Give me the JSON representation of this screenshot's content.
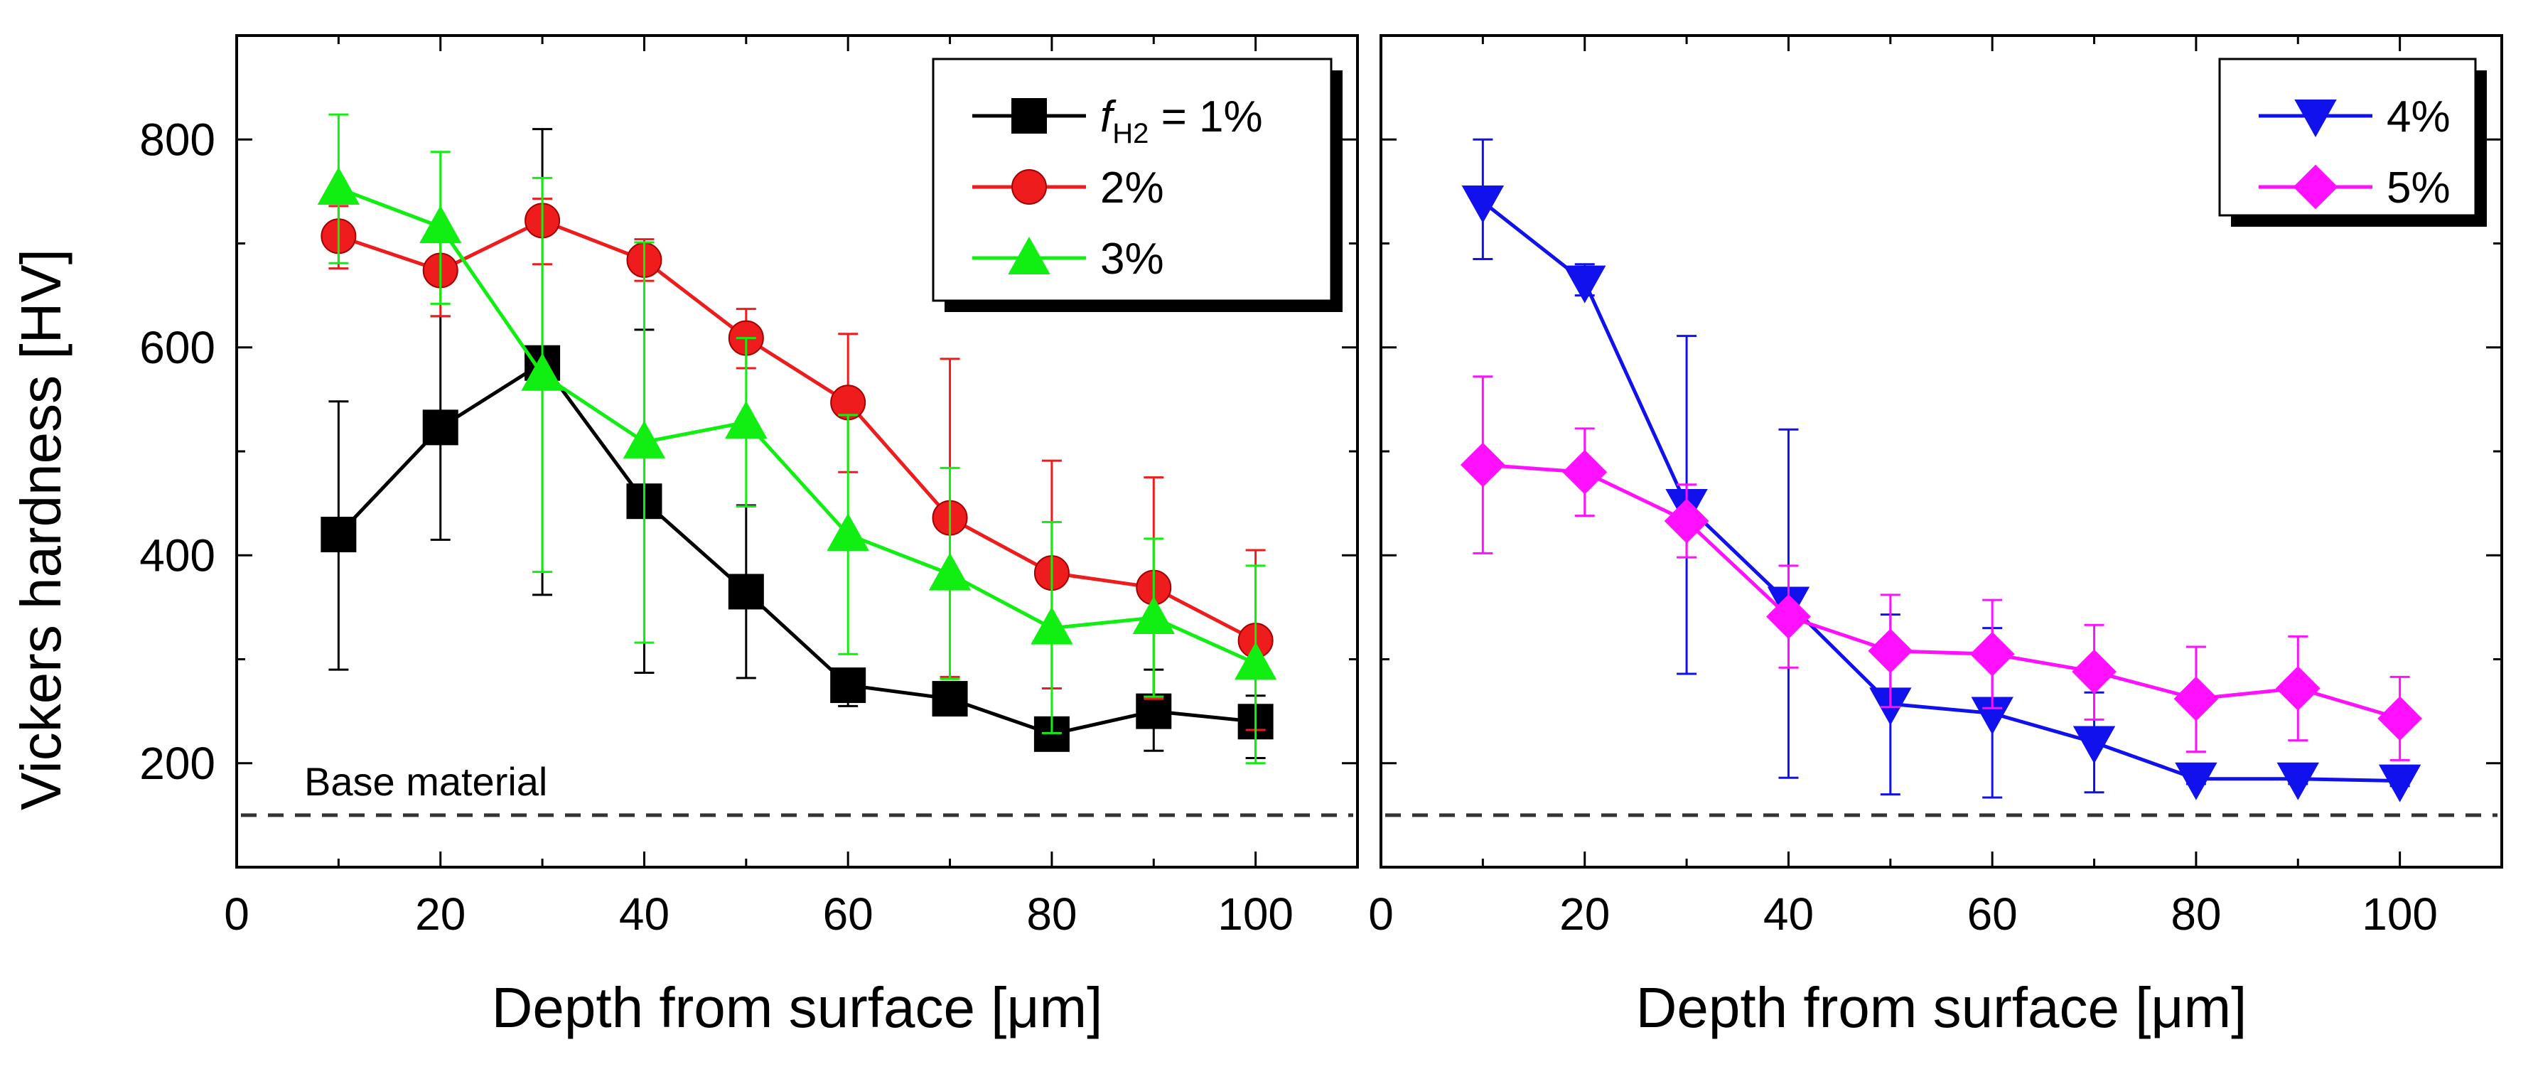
{
  "chart_data": [
    {
      "type": "line",
      "panel": "left",
      "xlabel": "Depth from surface [μm]",
      "ylabel": "Vickers hardness [HV]",
      "xlim": [
        0,
        110
      ],
      "ylim": [
        100,
        900
      ],
      "xticks": [
        0,
        20,
        40,
        60,
        80,
        100
      ],
      "yticks": [
        200,
        400,
        600,
        800
      ],
      "reference_line": {
        "label": "Base material",
        "y": 150
      },
      "legend": {
        "position": "top-right",
        "prefix": "f",
        "subscript": "H2",
        "eq_suffix": " = 1%"
      },
      "series": [
        {
          "name": "1%",
          "legend_label": "1%",
          "color": "#000000",
          "marker": "square",
          "x": [
            10,
            20,
            30,
            40,
            50,
            60,
            70,
            80,
            90,
            100
          ],
          "values": [
            420,
            523,
            585,
            452,
            365,
            275,
            262,
            228,
            250,
            240
          ],
          "err_low": [
            290,
            415,
            362,
            287,
            282,
            255,
            250,
            220,
            212,
            205
          ],
          "err_high": [
            548,
            630,
            810,
            617,
            448,
            290,
            275,
            240,
            290,
            265
          ]
        },
        {
          "name": "2%",
          "legend_label": "2%",
          "color": "#ee1c1c",
          "marker": "circle",
          "x": [
            10,
            20,
            30,
            40,
            50,
            60,
            70,
            80,
            90,
            100
          ],
          "values": [
            707,
            674,
            722,
            684,
            609,
            547,
            436,
            383,
            369,
            318
          ],
          "err_low": [
            676,
            630,
            680,
            664,
            580,
            480,
            283,
            272,
            262,
            232
          ],
          "err_high": [
            736,
            717,
            743,
            704,
            637,
            613,
            589,
            491,
            475,
            405
          ]
        },
        {
          "name": "3%",
          "legend_label": "3%",
          "color": "#11ee11",
          "marker": "triangle-up",
          "x": [
            10,
            20,
            30,
            40,
            50,
            60,
            70,
            80,
            90,
            100
          ],
          "values": [
            753,
            716,
            574,
            509,
            528,
            420,
            382,
            330,
            340,
            296
          ],
          "err_low": [
            681,
            642,
            384,
            316,
            447,
            305,
            281,
            229,
            264,
            200
          ],
          "err_high": [
            824,
            788,
            763,
            701,
            609,
            535,
            484,
            432,
            416,
            390
          ]
        }
      ]
    },
    {
      "type": "line",
      "panel": "right",
      "xlabel": "Depth from surface [μm]",
      "xlim": [
        0,
        110
      ],
      "ylim": [
        100,
        900
      ],
      "xticks": [
        0,
        20,
        40,
        60,
        80,
        100
      ],
      "yticks": [
        200,
        400,
        600,
        800
      ],
      "reference_line": {
        "y": 150
      },
      "legend": {
        "position": "top-right"
      },
      "series": [
        {
          "name": "4%",
          "legend_label": "4%",
          "color": "#1111ee",
          "marker": "triangle-down",
          "x": [
            10,
            20,
            30,
            40,
            50,
            60,
            70,
            80,
            90,
            100
          ],
          "values": [
            740,
            663,
            448,
            354,
            257,
            248,
            220,
            185,
            185,
            183
          ],
          "err_low": [
            685,
            650,
            286,
            186,
            170,
            167,
            172,
            180,
            180,
            178
          ],
          "err_high": [
            800,
            680,
            611,
            521,
            343,
            330,
            268,
            190,
            190,
            188
          ]
        },
        {
          "name": "5%",
          "legend_label": "5%",
          "color": "#ff11ff",
          "marker": "diamond",
          "x": [
            10,
            20,
            30,
            40,
            50,
            60,
            70,
            80,
            90,
            100
          ],
          "values": [
            487,
            480,
            433,
            341,
            308,
            305,
            288,
            262,
            272,
            243
          ],
          "err_low": [
            402,
            438,
            398,
            292,
            254,
            253,
            242,
            211,
            222,
            203
          ],
          "err_high": [
            572,
            522,
            468,
            390,
            362,
            357,
            333,
            312,
            322,
            283
          ]
        }
      ]
    }
  ]
}
